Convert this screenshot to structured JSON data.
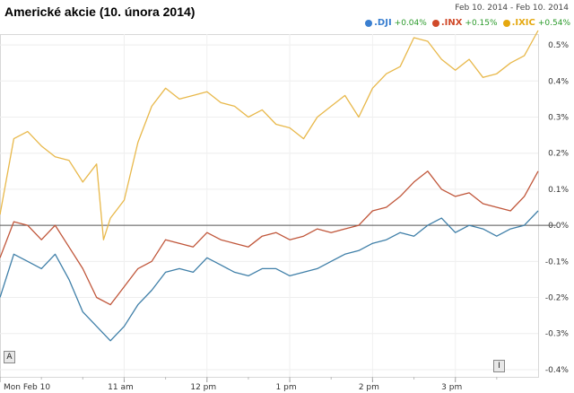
{
  "header": {
    "title": "Americké akcie (10. února 2014)",
    "date_range": "Feb 10. 2014  -  Feb 10. 2014"
  },
  "legend": [
    {
      "symbol": ".DJI",
      "change": "+0.04%",
      "color": "#3a7fd0"
    },
    {
      "symbol": ".INX",
      "change": "+0.15%",
      "color": "#d04a2a"
    },
    {
      "symbol": ".IXIC",
      "change": "+0.54%",
      "color": "#e5a80f"
    }
  ],
  "markers": {
    "a": "A",
    "i": "I"
  },
  "chart_data": {
    "type": "line",
    "title": "Americké akcie (10. února 2014)",
    "xlabel": "",
    "ylabel": "",
    "x_ticks": [
      "Mon Feb 10",
      "11 am",
      "12 pm",
      "1 pm",
      "2 pm",
      "3 pm"
    ],
    "x_tick_minutes": [
      0,
      90,
      150,
      210,
      270,
      330
    ],
    "x_range_minutes": [
      0,
      390
    ],
    "y_ticks": [
      "0.5%",
      "0.4%",
      "0.3%",
      "0.2%",
      "0.1%",
      "0.0%",
      "-0.1%",
      "-0.2%",
      "-0.3%",
      "-0.4%"
    ],
    "ylim": [
      -0.42,
      0.53
    ],
    "grid": true,
    "series": [
      {
        "name": ".IXIC",
        "color": "#e8b84a",
        "x": [
          0,
          10,
          20,
          30,
          40,
          50,
          60,
          70,
          75,
          80,
          90,
          100,
          110,
          120,
          130,
          140,
          150,
          160,
          170,
          180,
          190,
          200,
          210,
          220,
          230,
          240,
          250,
          260,
          270,
          280,
          290,
          300,
          310,
          320,
          330,
          340,
          350,
          360,
          370,
          380,
          390
        ],
        "y": [
          0.03,
          0.24,
          0.26,
          0.22,
          0.19,
          0.18,
          0.12,
          0.17,
          -0.04,
          0.02,
          0.07,
          0.23,
          0.33,
          0.38,
          0.35,
          0.36,
          0.37,
          0.34,
          0.33,
          0.3,
          0.32,
          0.28,
          0.27,
          0.24,
          0.3,
          0.33,
          0.36,
          0.3,
          0.38,
          0.42,
          0.44,
          0.52,
          0.51,
          0.46,
          0.43,
          0.46,
          0.41,
          0.42,
          0.45,
          0.47,
          0.54
        ]
      },
      {
        "name": ".INX",
        "color": "#c0563a",
        "x": [
          0,
          10,
          20,
          30,
          40,
          50,
          60,
          70,
          80,
          90,
          100,
          110,
          120,
          130,
          140,
          150,
          160,
          170,
          180,
          190,
          200,
          210,
          220,
          230,
          240,
          250,
          260,
          270,
          280,
          290,
          300,
          310,
          320,
          330,
          340,
          350,
          360,
          370,
          380,
          390
        ],
        "y": [
          -0.09,
          0.01,
          0.0,
          -0.04,
          0.0,
          -0.06,
          -0.12,
          -0.2,
          -0.22,
          -0.17,
          -0.12,
          -0.1,
          -0.04,
          -0.05,
          -0.06,
          -0.02,
          -0.04,
          -0.05,
          -0.06,
          -0.03,
          -0.02,
          -0.04,
          -0.03,
          -0.01,
          -0.02,
          -0.01,
          0.0,
          0.04,
          0.05,
          0.08,
          0.12,
          0.15,
          0.1,
          0.08,
          0.09,
          0.06,
          0.05,
          0.04,
          0.08,
          0.15
        ]
      },
      {
        "name": ".DJI",
        "color": "#3f7fa8",
        "x": [
          0,
          10,
          20,
          30,
          40,
          50,
          60,
          70,
          80,
          90,
          100,
          110,
          120,
          130,
          140,
          150,
          160,
          170,
          180,
          190,
          200,
          210,
          220,
          230,
          240,
          250,
          260,
          270,
          280,
          290,
          300,
          310,
          320,
          330,
          340,
          350,
          360,
          370,
          380,
          390
        ],
        "y": [
          -0.2,
          -0.08,
          -0.1,
          -0.12,
          -0.08,
          -0.15,
          -0.24,
          -0.28,
          -0.32,
          -0.28,
          -0.22,
          -0.18,
          -0.13,
          -0.12,
          -0.13,
          -0.09,
          -0.11,
          -0.13,
          -0.14,
          -0.12,
          -0.12,
          -0.14,
          -0.13,
          -0.12,
          -0.1,
          -0.08,
          -0.07,
          -0.05,
          -0.04,
          -0.02,
          -0.03,
          0.0,
          0.02,
          -0.02,
          0.0,
          -0.01,
          -0.03,
          -0.01,
          0.0,
          0.04
        ]
      }
    ]
  }
}
